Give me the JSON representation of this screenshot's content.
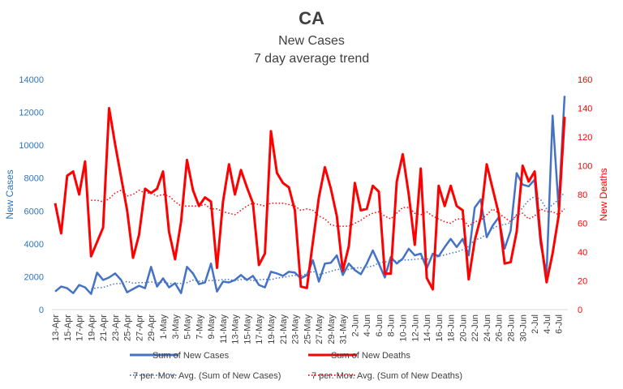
{
  "chart_data": {
    "type": "line",
    "title": "CA",
    "subtitle1": "New Cases",
    "subtitle2": "7 day average trend",
    "ylabel_left": "New Cases",
    "ylabel_right": "New Deaths",
    "ylim_left": [
      0,
      14000
    ],
    "ylim_right": [
      0,
      160
    ],
    "yticks_left": [
      "0",
      "2000",
      "4000",
      "6000",
      "8000",
      "10000",
      "12000",
      "14000"
    ],
    "yticks_right": [
      "0",
      "20",
      "40",
      "60",
      "80",
      "100",
      "120",
      "140",
      "160"
    ],
    "tick_labels": [
      "13-Apr",
      "15-Apr",
      "17-Apr",
      "19-Apr",
      "21-Apr",
      "23-Apr",
      "25-Apr",
      "27-Apr",
      "29-Apr",
      "1-May",
      "3-May",
      "5-May",
      "7-May",
      "9-May",
      "11-May",
      "13-May",
      "15-May",
      "17-May",
      "19-May",
      "21-May",
      "23-May",
      "25-May",
      "27-May",
      "29-May",
      "31-May",
      "2-Jun",
      "4-Jun",
      "6-Jun",
      "8-Jun",
      "10-Jun",
      "12-Jun",
      "14-Jun",
      "16-Jun",
      "18-Jun",
      "20-Jun",
      "22-Jun",
      "24-Jun",
      "26-Jun",
      "28-Jun",
      "30-Jun",
      "2-Jul",
      "4-Jul",
      "6-Jul"
    ],
    "series": [
      {
        "name": "Sum of New Cases",
        "axis": "left",
        "color": "#4472c4",
        "values": [
          1100,
          1400,
          1300,
          1000,
          1500,
          1350,
          950,
          2250,
          1800,
          1950,
          2200,
          1800,
          1050,
          1250,
          1450,
          1300,
          2600,
          1400,
          1900,
          1350,
          1600,
          1000,
          2600,
          2200,
          1550,
          1650,
          2800,
          1100,
          1700,
          1650,
          1800,
          2100,
          1800,
          2050,
          1500,
          1350,
          2300,
          2200,
          2050,
          2300,
          2250,
          1900,
          2100,
          3000,
          1700,
          2800,
          2850,
          3300,
          2100,
          2800,
          2400,
          2150,
          2800,
          3600,
          2800,
          1950,
          3200,
          2800,
          3100,
          3700,
          3300,
          3400,
          2500,
          3400,
          3250,
          3800,
          4300,
          3800,
          4300,
          3300,
          6200,
          6700,
          4400,
          5100,
          5600,
          3700,
          4800,
          8300,
          7600,
          7500,
          7900,
          4000,
          2200,
          11800,
          6200,
          13000
        ]
      },
      {
        "name": "Sum of New Deaths",
        "axis": "right",
        "color": "#ff0000",
        "values": [
          74,
          53,
          93,
          96,
          80,
          103,
          37,
          47,
          57,
          140,
          115,
          92,
          69,
          36,
          52,
          84,
          81,
          84,
          96,
          54,
          35,
          61,
          104,
          83,
          72,
          78,
          75,
          29,
          75,
          101,
          80,
          97,
          85,
          74,
          31,
          39,
          124,
          95,
          88,
          85,
          69,
          16,
          15,
          47,
          78,
          99,
          84,
          65,
          27,
          44,
          88,
          69,
          70,
          86,
          82,
          25,
          25,
          89,
          108,
          80,
          45,
          98,
          22,
          14,
          86,
          72,
          86,
          72,
          69,
          21,
          48,
          64,
          101,
          84,
          67,
          32,
          33,
          54,
          100,
          89,
          96,
          50,
          19,
          39,
          65,
          134
        ]
      },
      {
        "name": "7 per. Mov. Avg. (Sum of New Cases)",
        "axis": "left",
        "color": "#4472c4",
        "dotted": true,
        "values": [
          null,
          null,
          null,
          null,
          null,
          null,
          1236,
          1336,
          1343,
          1479,
          1579,
          1586,
          1714,
          1607,
          1636,
          1636,
          1686,
          1614,
          1679,
          1586,
          1586,
          1593,
          1636,
          1793,
          1722,
          1757,
          1776,
          1764,
          1834,
          1829,
          1757,
          1829,
          1864,
          1757,
          1814,
          1850,
          1814,
          1921,
          1950,
          2029,
          2086,
          2057,
          2179,
          2329,
          2129,
          2224,
          2329,
          2436,
          2464,
          2436,
          2536,
          2543,
          2578,
          2649,
          2836,
          2914,
          2885,
          2964,
          3014,
          3021,
          3057,
          3093,
          3064,
          3114,
          3246,
          3325,
          3429,
          3500,
          3643,
          3843,
          4243,
          4343,
          4588,
          4929,
          5114,
          5171,
          5286,
          5729,
          6200,
          6650,
          6885,
          6700,
          6114,
          6371,
          6700,
          7129
        ]
      },
      {
        "name": "7 per. Mov. Avg. (Sum of New Deaths)",
        "axis": "right",
        "color": "#ff0000",
        "dotted": true,
        "values": [
          null,
          null,
          null,
          null,
          null,
          null,
          76,
          76,
          75,
          77,
          81,
          83,
          79,
          80,
          83,
          81,
          81,
          79,
          80,
          79,
          75,
          72,
          72,
          72,
          72,
          73,
          70,
          70,
          68,
          67,
          66,
          69,
          72,
          74,
          73,
          72,
          74,
          74,
          74,
          73,
          72,
          69,
          70,
          69,
          65,
          63,
          59,
          58,
          58,
          58,
          60,
          62,
          65,
          67,
          68,
          65,
          63,
          67,
          71,
          71,
          67,
          66,
          68,
          65,
          63,
          61,
          60,
          63,
          63,
          58,
          61,
          62,
          66,
          70,
          67,
          64,
          61,
          66,
          67,
          63,
          65,
          70,
          68,
          68,
          66,
          70
        ]
      }
    ]
  }
}
